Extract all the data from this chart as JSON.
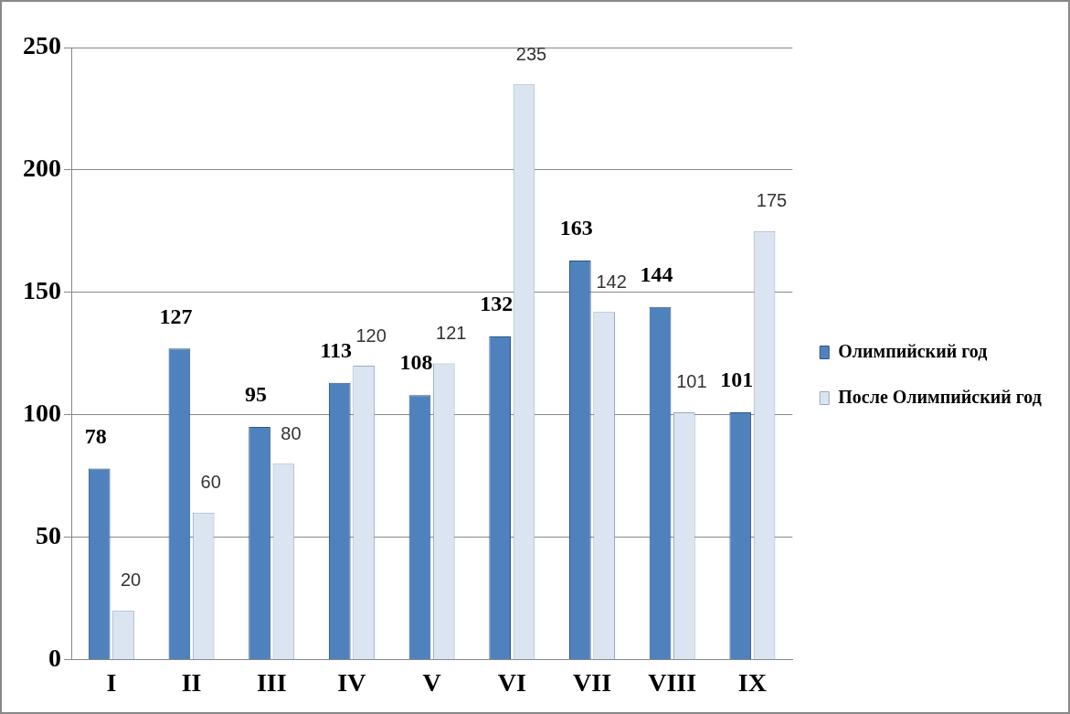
{
  "chart_data": {
    "type": "bar",
    "categories": [
      "I",
      "II",
      "III",
      "IV",
      "V",
      "VI",
      "VII",
      "VIII",
      "IX"
    ],
    "series": [
      {
        "name": "Олимпийский год",
        "color": "#4f81bd",
        "values": [
          78,
          127,
          95,
          113,
          108,
          132,
          163,
          144,
          101
        ]
      },
      {
        "name": "После Олимпийский год",
        "color": "#dbe5f1",
        "values": [
          20,
          60,
          80,
          120,
          121,
          235,
          142,
          101,
          175
        ]
      }
    ],
    "ylim": [
      0,
      250
    ],
    "yticks": [
      0,
      50,
      100,
      150,
      200,
      250
    ],
    "grid": "y",
    "legend": "right",
    "data_labels": true
  }
}
